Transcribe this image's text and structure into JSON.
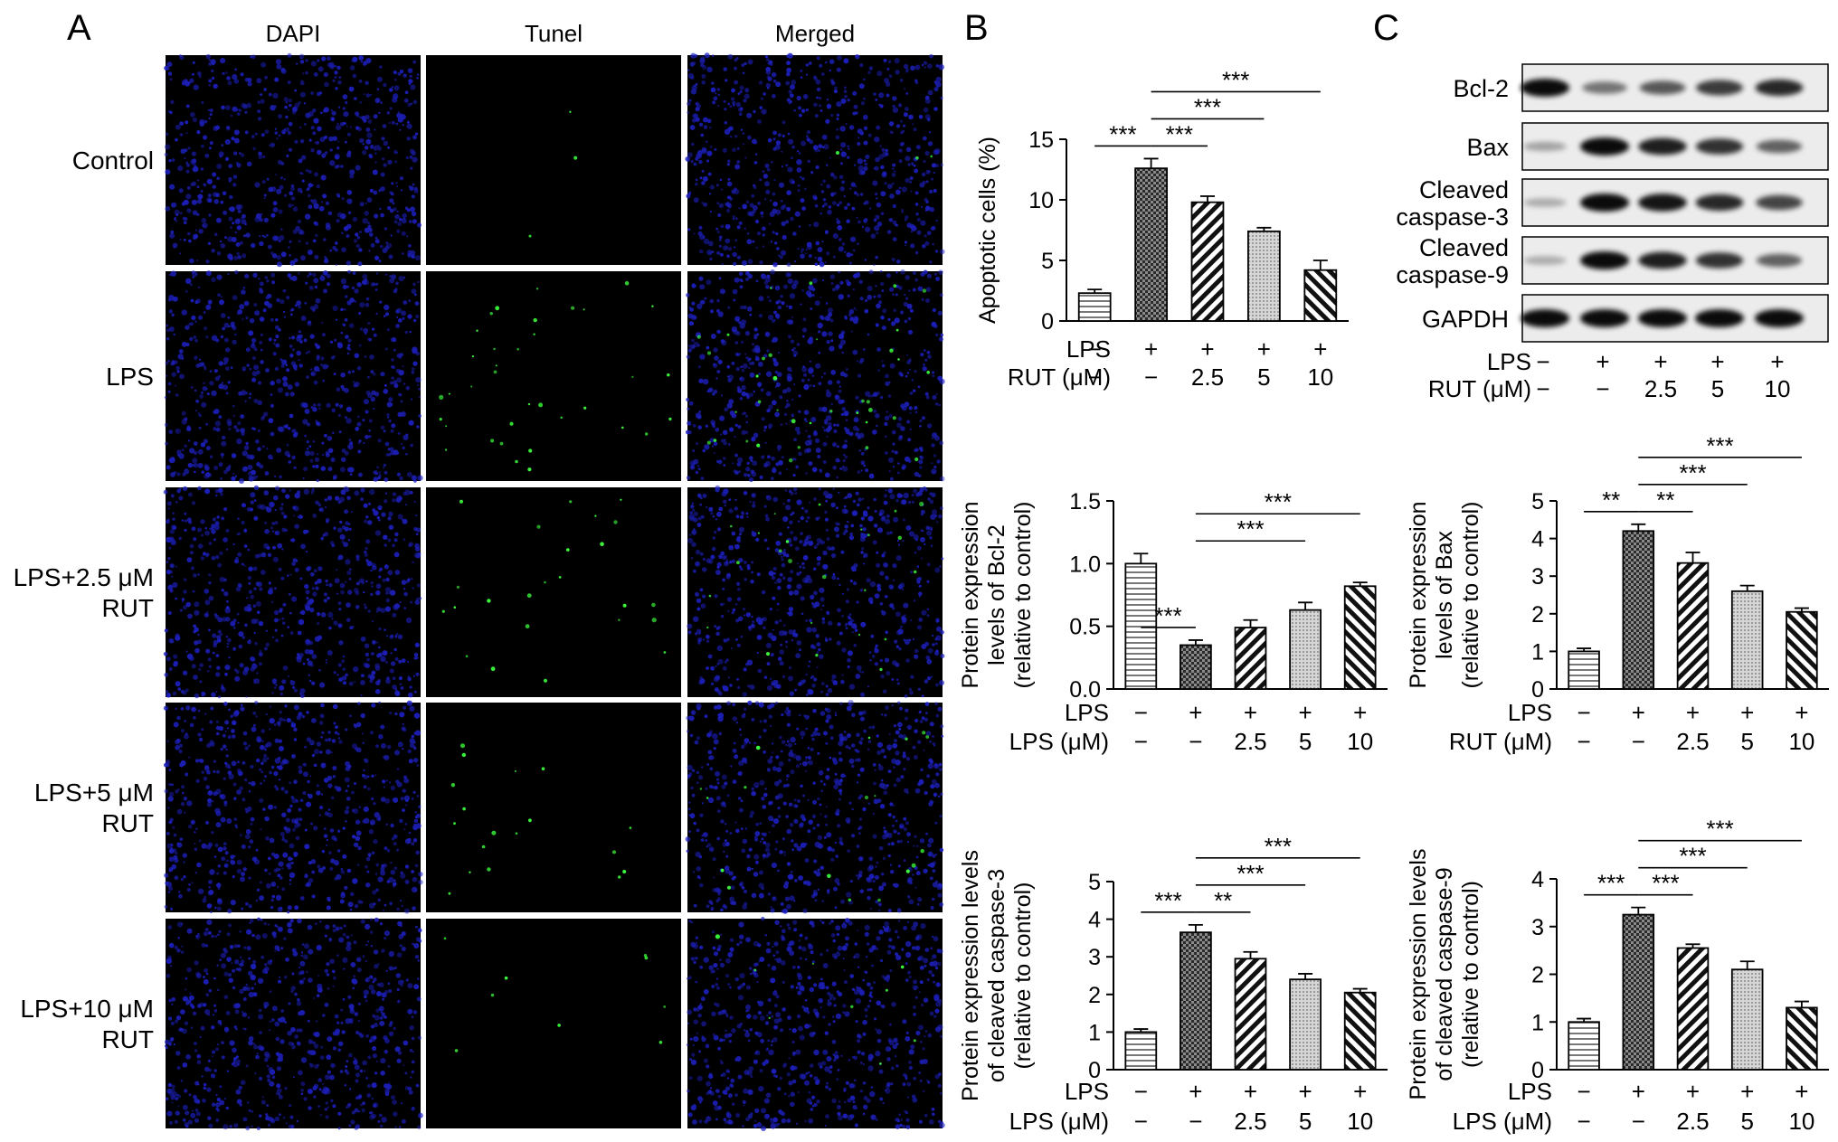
{
  "panels": {
    "A": {
      "letter": "A",
      "col_headers": [
        "DAPI",
        "Tunel",
        "Merged"
      ],
      "row_labels": [
        [
          "Control"
        ],
        [
          "LPS"
        ],
        [
          "LPS+2.5 μM",
          "RUT"
        ],
        [
          "LPS+5 μM",
          "RUT"
        ],
        [
          "LPS+10 μM",
          "RUT"
        ]
      ],
      "tunel_density": [
        0.05,
        0.6,
        0.4,
        0.3,
        0.15
      ],
      "colors": {
        "dapi": "#1f22c8",
        "tunel": "#3cff3c",
        "background": "#000000"
      }
    },
    "B": {
      "letter": "B"
    },
    "C": {
      "letter": "C"
    }
  },
  "treatment_rows": {
    "lps": [
      "−",
      "+",
      "+",
      "+",
      "+"
    ],
    "dose": [
      "−",
      "−",
      "2.5",
      "5",
      "10"
    ]
  },
  "western_blot": {
    "labels": [
      [
        "Bcl-2"
      ],
      [
        "Bax"
      ],
      [
        "Cleaved",
        "caspase-3"
      ],
      [
        "Cleaved",
        "caspase-9"
      ],
      [
        "GAPDH"
      ]
    ],
    "intensity": [
      [
        1.0,
        0.45,
        0.6,
        0.75,
        0.85
      ],
      [
        0.2,
        1.0,
        0.9,
        0.8,
        0.55
      ],
      [
        0.15,
        1.0,
        0.95,
        0.85,
        0.7
      ],
      [
        0.15,
        1.0,
        0.9,
        0.8,
        0.55
      ],
      [
        1.0,
        1.0,
        1.0,
        1.0,
        1.0
      ]
    ],
    "row_label_1": "LPS",
    "row_label_2": "RUT (μM)"
  },
  "chart_data": [
    {
      "id": "apoptotic",
      "type": "bar",
      "ylabel": [
        "Apoptotic cells (%)"
      ],
      "ylim": [
        0,
        15
      ],
      "yticks": [
        "0",
        "5",
        "10",
        "15"
      ],
      "values": [
        2.3,
        12.6,
        9.8,
        7.4,
        4.2
      ],
      "errors": [
        0.3,
        0.8,
        0.5,
        0.3,
        0.8
      ],
      "row_label_1": "LPS",
      "row_label_2": "RUT (μM)",
      "sig": [
        {
          "from": 0,
          "to": 1,
          "label": "***"
        },
        {
          "from": 1,
          "to": 2,
          "label": "***"
        },
        {
          "from": 1,
          "to": 3,
          "label": "***"
        },
        {
          "from": 1,
          "to": 4,
          "label": "***"
        }
      ]
    },
    {
      "id": "bax",
      "type": "bar",
      "ylabel": [
        "Protein expression",
        "levels of Bax",
        "(relative to control)"
      ],
      "ylim": [
        0,
        5
      ],
      "yticks": [
        "0",
        "1",
        "2",
        "3",
        "4",
        "5"
      ],
      "values": [
        1.0,
        4.2,
        3.35,
        2.6,
        2.05
      ],
      "errors": [
        0.08,
        0.18,
        0.28,
        0.15,
        0.1
      ],
      "row_label_1": "LPS",
      "row_label_2": "RUT (μM)",
      "sig": [
        {
          "from": 0,
          "to": 1,
          "label": "**"
        },
        {
          "from": 1,
          "to": 2,
          "label": "**"
        },
        {
          "from": 1,
          "to": 3,
          "label": "***"
        },
        {
          "from": 1,
          "to": 4,
          "label": "***"
        }
      ]
    },
    {
      "id": "bcl2",
      "type": "bar",
      "ylabel": [
        "Protein expression",
        "levels of Bcl-2",
        "(relative to control)"
      ],
      "ylim": [
        0,
        1.5
      ],
      "yticks": [
        "0.0",
        "0.5",
        "1.0",
        "1.5"
      ],
      "values": [
        1.0,
        0.35,
        0.49,
        0.63,
        0.82
      ],
      "errors": [
        0.08,
        0.04,
        0.06,
        0.06,
        0.03
      ],
      "row_label_1": "LPS",
      "row_label_2": "LPS (μM)",
      "sig": [
        {
          "from": 0,
          "to": 1,
          "label": "***"
        },
        {
          "from": 1,
          "to": 3,
          "label": "***"
        },
        {
          "from": 1,
          "to": 4,
          "label": "***"
        }
      ]
    },
    {
      "id": "casp3",
      "type": "bar",
      "ylabel": [
        "Protein expression levels",
        "of cleaved caspase-3",
        "(relative to control)"
      ],
      "ylim": [
        0,
        5
      ],
      "yticks": [
        "0",
        "1",
        "2",
        "3",
        "4",
        "5"
      ],
      "values": [
        1.0,
        3.65,
        2.95,
        2.4,
        2.05
      ],
      "errors": [
        0.08,
        0.2,
        0.18,
        0.15,
        0.1
      ],
      "row_label_1": "LPS",
      "row_label_2": "LPS (μM)",
      "sig": [
        {
          "from": 0,
          "to": 1,
          "label": "***"
        },
        {
          "from": 1,
          "to": 2,
          "label": "**"
        },
        {
          "from": 1,
          "to": 3,
          "label": "***"
        },
        {
          "from": 1,
          "to": 4,
          "label": "***"
        }
      ]
    },
    {
      "id": "casp9",
      "type": "bar",
      "ylabel": [
        "Protein expression levels",
        "of cleaved caspase-9",
        "(relative to control)"
      ],
      "ylim": [
        0,
        4
      ],
      "yticks": [
        "0",
        "1",
        "2",
        "3",
        "4"
      ],
      "values": [
        1.0,
        3.25,
        2.55,
        2.1,
        1.3
      ],
      "errors": [
        0.07,
        0.15,
        0.08,
        0.17,
        0.13
      ],
      "row_label_1": "LPS",
      "row_label_2": "LPS (μM)",
      "sig": [
        {
          "from": 0,
          "to": 1,
          "label": "***"
        },
        {
          "from": 1,
          "to": 2,
          "label": "***"
        },
        {
          "from": 1,
          "to": 3,
          "label": "***"
        },
        {
          "from": 1,
          "to": 4,
          "label": "***"
        }
      ]
    }
  ]
}
